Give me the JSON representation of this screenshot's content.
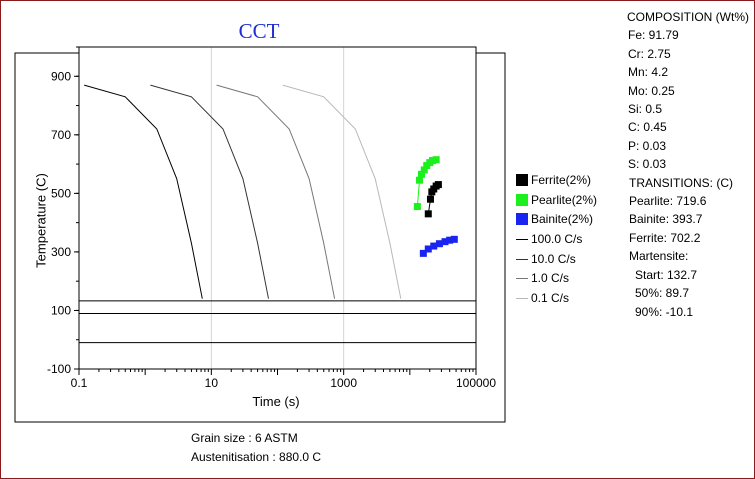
{
  "chart_data": {
    "type": "line",
    "title": "CCT",
    "xlabel": "Time (s)",
    "ylabel": "Temperature (C)",
    "x_scale": "log",
    "xlim": [
      0.1,
      100000
    ],
    "ylim": [
      -100,
      1000
    ],
    "x_ticks": [
      "0.1",
      "10",
      "1000",
      "100000"
    ],
    "y_ticks": [
      "-100",
      "100",
      "300",
      "500",
      "700",
      "900"
    ],
    "grid": true,
    "legend_position": "right",
    "cooling_curves": [
      {
        "name": "100.0 C/s",
        "color": "#000000",
        "x": [
          0.12,
          0.5,
          1.5,
          3,
          5,
          7.3
        ],
        "y": [
          870,
          830,
          720,
          550,
          330,
          140
        ]
      },
      {
        "name": "10.0 C/s",
        "color": "#333333",
        "x": [
          1.2,
          5,
          15,
          30,
          50,
          73
        ],
        "y": [
          870,
          830,
          720,
          550,
          330,
          140
        ]
      },
      {
        "name": "1.0 C/s",
        "color": "#777777",
        "x": [
          12,
          50,
          150,
          300,
          500,
          730
        ],
        "y": [
          870,
          830,
          720,
          550,
          330,
          140
        ]
      },
      {
        "name": "0.1 C/s",
        "color": "#b8b8b8",
        "x": [
          120,
          500,
          1500,
          3000,
          5000,
          7300
        ],
        "y": [
          870,
          830,
          720,
          550,
          330,
          140
        ]
      }
    ],
    "transformation_series": [
      {
        "name": "Ferrite(2%)",
        "color": "#000000",
        "x": [
          19000,
          20500,
          21500,
          23000,
          25000,
          27000
        ],
        "y": [
          430,
          480,
          505,
          515,
          525,
          530
        ]
      },
      {
        "name": "Pearlite(2%)",
        "color": "#1cf01c",
        "x": [
          13000,
          14000,
          15000,
          16500,
          18000,
          20000,
          22000,
          25000
        ],
        "y": [
          455,
          545,
          565,
          580,
          595,
          605,
          612,
          615
        ]
      },
      {
        "name": "Bainite(2%)",
        "color": "#1a24f0",
        "x": [
          16000,
          19000,
          23000,
          28000,
          34000,
          40000,
          47000
        ],
        "y": [
          295,
          310,
          320,
          328,
          335,
          340,
          343
        ]
      }
    ],
    "horizontal_lines": [
      {
        "label": "Martensite Start",
        "y": 132.7
      },
      {
        "label": "Martensite 50%",
        "y": 89.7
      },
      {
        "label": "Martensite 90%",
        "y": -10.1
      }
    ]
  },
  "legend": {
    "items": [
      {
        "label": "Ferrite(2%)",
        "kind": "box",
        "color": "#000000"
      },
      {
        "label": "Pearlite(2%)",
        "kind": "box",
        "color": "#1cf01c"
      },
      {
        "label": "Bainite(2%)",
        "kind": "box",
        "color": "#1a24f0"
      },
      {
        "label": "100.0 C/s",
        "kind": "line",
        "color": "#000000"
      },
      {
        "label": "10.0 C/s",
        "kind": "line",
        "color": "#333333"
      },
      {
        "label": "1.0 C/s",
        "kind": "line",
        "color": "#777777"
      },
      {
        "label": "0.1 C/s",
        "kind": "line",
        "color": "#b8b8b8"
      }
    ]
  },
  "info": {
    "grain_size": "Grain size : 6 ASTM",
    "austenitisation": "Austenitisation : 880.0 C"
  },
  "panel": {
    "composition_title": "COMPOSITION (Wt%)",
    "composition": [
      "Fe: 91.79",
      "Cr: 2.75",
      "Mn: 4.2",
      "Mo: 0.25",
      "Si: 0.5",
      "C: 0.45",
      "P: 0.03",
      "S: 0.03"
    ],
    "transitions_title": "TRANSITIONS: (C)",
    "transitions": [
      "Pearlite: 719.6",
      "Bainite: 393.7",
      "Ferrite: 702.2"
    ],
    "martensite_title": "Martensite:",
    "martensite": [
      " Start: 132.7",
      " 50%:   89.7",
      " 90%:  -10.1"
    ]
  }
}
